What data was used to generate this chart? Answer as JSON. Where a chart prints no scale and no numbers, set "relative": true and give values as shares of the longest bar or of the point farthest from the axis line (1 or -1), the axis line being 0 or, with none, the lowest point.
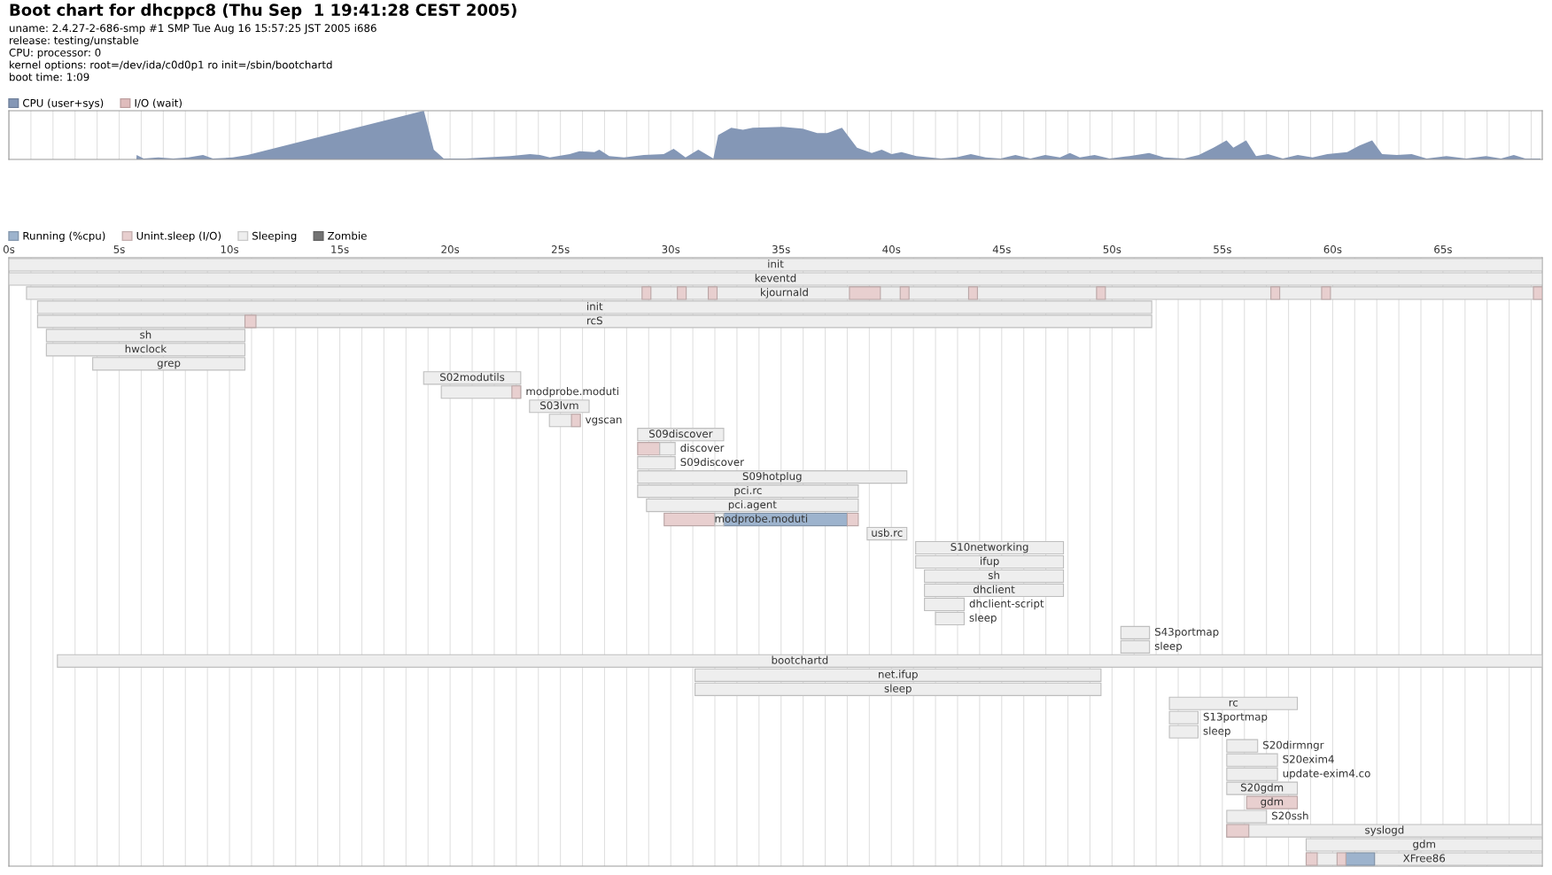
{
  "chart_data": [
    {
      "type": "area",
      "title": "Boot chart for dhcppc8 (Thu Sep  1 19:41:28 CEST 2005)",
      "annotations": [
        "uname: 2.4.27-2-686-smp #1 SMP Tue Aug 16 15:57:25 JST 2005 i686",
        "release: testing/unstable",
        "CPU: processor: 0",
        "kernel options: root=/dev/ida/c0d0p1 ro init=/sbin/bootchartd",
        "boot time: 1:09"
      ],
      "relative": true,
      "xlim": [
        0,
        69.5
      ],
      "grid": "x",
      "legend": "top left",
      "tick_labels": false,
      "xticks": [
        {
          "value": 0,
          "label": null
        },
        {
          "value": 1,
          "label": null
        },
        {
          "value": 2,
          "label": null
        },
        {
          "value": 3,
          "label": null
        },
        {
          "value": 4,
          "label": null
        },
        {
          "value": 5,
          "label": null
        },
        {
          "value": 6,
          "label": null
        },
        {
          "value": 7,
          "label": null
        },
        {
          "value": 8,
          "label": null
        },
        {
          "value": 9,
          "label": null
        },
        {
          "value": 10,
          "label": null
        },
        {
          "value": 11,
          "label": null
        },
        {
          "value": 12,
          "label": null
        },
        {
          "value": 13,
          "label": null
        },
        {
          "value": 14,
          "label": null
        },
        {
          "value": 15,
          "label": null
        },
        {
          "value": 16,
          "label": null
        },
        {
          "value": 17,
          "label": null
        },
        {
          "value": 18,
          "label": null
        },
        {
          "value": 19,
          "label": null
        },
        {
          "value": 20,
          "label": null
        },
        {
          "value": 21,
          "label": null
        },
        {
          "value": 22,
          "label": null
        },
        {
          "value": 23,
          "label": null
        },
        {
          "value": 24,
          "label": null
        },
        {
          "value": 25,
          "label": null
        },
        {
          "value": 26,
          "label": null
        },
        {
          "value": 27,
          "label": null
        },
        {
          "value": 28,
          "label": null
        },
        {
          "value": 29,
          "label": null
        },
        {
          "value": 30,
          "label": null
        },
        {
          "value": 31,
          "label": null
        },
        {
          "value": 32,
          "label": null
        },
        {
          "value": 33,
          "label": null
        },
        {
          "value": 34,
          "label": null
        },
        {
          "value": 35,
          "label": null
        },
        {
          "value": 36,
          "label": null
        },
        {
          "value": 37,
          "label": null
        },
        {
          "value": 38,
          "label": null
        },
        {
          "value": 39,
          "label": null
        },
        {
          "value": 40,
          "label": null
        },
        {
          "value": 41,
          "label": null
        },
        {
          "value": 42,
          "label": null
        },
        {
          "value": 43,
          "label": null
        },
        {
          "value": 44,
          "label": null
        },
        {
          "value": 45,
          "label": null
        },
        {
          "value": 46,
          "label": null
        },
        {
          "value": 47,
          "label": null
        },
        {
          "value": 48,
          "label": null
        },
        {
          "value": 49,
          "label": null
        },
        {
          "value": 50,
          "label": null
        },
        {
          "value": 51,
          "label": null
        },
        {
          "value": 52,
          "label": null
        },
        {
          "value": 53,
          "label": null
        },
        {
          "value": 54,
          "label": null
        },
        {
          "value": 55,
          "label": null
        },
        {
          "value": 56,
          "label": null
        },
        {
          "value": 57,
          "label": null
        },
        {
          "value": 58,
          "label": null
        },
        {
          "value": 59,
          "label": null
        },
        {
          "value": 60,
          "label": null
        },
        {
          "value": 61,
          "label": null
        },
        {
          "value": 62,
          "label": null
        },
        {
          "value": 63,
          "label": null
        },
        {
          "value": 64,
          "label": null
        },
        {
          "value": 65,
          "label": null
        },
        {
          "value": 66,
          "label": null
        },
        {
          "value": 67,
          "label": null
        },
        {
          "value": 68,
          "label": null
        },
        {
          "value": 69,
          "label": null
        }
      ],
      "series": [
        {
          "name": "CPU (user+sys)",
          "color": "#8497b6",
          "x": [
            0,
            5.78,
            5.79,
            6.11,
            6.78,
            7.45,
            8.13,
            8.8,
            9.25,
            10.15,
            10.82,
            18.81,
            19.26,
            19.71,
            20.7,
            21.6,
            22.72,
            23.62,
            24.07,
            24.52,
            25.42,
            25.86,
            26.54,
            26.76,
            27.21,
            27.88,
            28.78,
            29.68,
            30.13,
            30.67,
            31.25,
            31.93,
            32.15,
            32.74,
            33.27,
            33.72,
            35.07,
            35.97,
            36.64,
            37.09,
            37.76,
            38.44,
            39.11,
            39.56,
            40.01,
            40.46,
            41.13,
            42.25,
            42.93,
            43.6,
            44.27,
            44.95,
            45.62,
            46.3,
            46.97,
            47.64,
            48.09,
            48.54,
            49.21,
            49.89,
            50.79,
            51.68,
            52.36,
            53.26,
            53.93,
            54.6,
            55.19,
            55.5,
            56.08,
            56.53,
            57.07,
            57.74,
            58.42,
            59.09,
            59.76,
            60.66,
            61.2,
            61.79,
            62.24,
            62.91,
            63.58,
            64.26,
            65.16,
            66.05,
            66.95,
            67.63,
            68.21,
            68.73,
            69.42
          ],
          "values": [
            0,
            0,
            0.09,
            0.02,
            0.04,
            0.02,
            0.04,
            0.09,
            0.02,
            0.04,
            0.09,
            1,
            0.2,
            0.02,
            0.02,
            0.04,
            0.07,
            0.11,
            0.09,
            0.04,
            0.11,
            0.17,
            0.15,
            0.2,
            0.07,
            0.04,
            0.09,
            0.11,
            0.22,
            0.04,
            0.2,
            0.02,
            0.5,
            0.65,
            0.61,
            0.65,
            0.67,
            0.63,
            0.54,
            0.54,
            0.65,
            0.24,
            0.13,
            0.2,
            0.11,
            0.15,
            0.07,
            0.02,
            0.04,
            0.11,
            0.04,
            0.02,
            0.09,
            0.02,
            0.09,
            0.04,
            0.13,
            0.04,
            0.09,
            0.02,
            0.07,
            0.13,
            0.04,
            0.02,
            0.09,
            0.24,
            0.39,
            0.24,
            0.39,
            0.07,
            0.11,
            0.02,
            0.09,
            0.04,
            0.11,
            0.15,
            0.28,
            0.39,
            0.11,
            0.09,
            0.11,
            0.02,
            0.07,
            0.02,
            0.07,
            0.02,
            0.09,
            0.02,
            0.02
          ]
        },
        {
          "name": "I/O (wait)",
          "color": "#dfbcbc"
        }
      ]
    },
    {
      "type": "bar",
      "orientation": "horizontal",
      "xlim": [
        0,
        69.5
      ],
      "grid": "x",
      "legend": "top left",
      "tick_labels": "x",
      "xticks": [
        {
          "value": 0,
          "label": "0s"
        },
        {
          "value": 1,
          "label": null
        },
        {
          "value": 2,
          "label": null
        },
        {
          "value": 3,
          "label": null
        },
        {
          "value": 4,
          "label": null
        },
        {
          "value": 5,
          "label": "5s"
        },
        {
          "value": 6,
          "label": null
        },
        {
          "value": 7,
          "label": null
        },
        {
          "value": 8,
          "label": null
        },
        {
          "value": 9,
          "label": null
        },
        {
          "value": 10,
          "label": "10s"
        },
        {
          "value": 11,
          "label": null
        },
        {
          "value": 12,
          "label": null
        },
        {
          "value": 13,
          "label": null
        },
        {
          "value": 14,
          "label": null
        },
        {
          "value": 15,
          "label": "15s"
        },
        {
          "value": 16,
          "label": null
        },
        {
          "value": 17,
          "label": null
        },
        {
          "value": 18,
          "label": null
        },
        {
          "value": 19,
          "label": null
        },
        {
          "value": 20,
          "label": "20s"
        },
        {
          "value": 21,
          "label": null
        },
        {
          "value": 22,
          "label": null
        },
        {
          "value": 23,
          "label": null
        },
        {
          "value": 24,
          "label": null
        },
        {
          "value": 25,
          "label": "25s"
        },
        {
          "value": 26,
          "label": null
        },
        {
          "value": 27,
          "label": null
        },
        {
          "value": 28,
          "label": null
        },
        {
          "value": 29,
          "label": null
        },
        {
          "value": 30,
          "label": "30s"
        },
        {
          "value": 31,
          "label": null
        },
        {
          "value": 32,
          "label": null
        },
        {
          "value": 33,
          "label": null
        },
        {
          "value": 34,
          "label": null
        },
        {
          "value": 35,
          "label": "35s"
        },
        {
          "value": 36,
          "label": null
        },
        {
          "value": 37,
          "label": null
        },
        {
          "value": 38,
          "label": null
        },
        {
          "value": 39,
          "label": null
        },
        {
          "value": 40,
          "label": "40s"
        },
        {
          "value": 41,
          "label": null
        },
        {
          "value": 42,
          "label": null
        },
        {
          "value": 43,
          "label": null
        },
        {
          "value": 44,
          "label": null
        },
        {
          "value": 45,
          "label": "45s"
        },
        {
          "value": 46,
          "label": null
        },
        {
          "value": 47,
          "label": null
        },
        {
          "value": 48,
          "label": null
        },
        {
          "value": 49,
          "label": null
        },
        {
          "value": 50,
          "label": "50s"
        },
        {
          "value": 51,
          "label": null
        },
        {
          "value": 52,
          "label": null
        },
        {
          "value": 53,
          "label": null
        },
        {
          "value": 54,
          "label": null
        },
        {
          "value": 55,
          "label": "55s"
        },
        {
          "value": 56,
          "label": null
        },
        {
          "value": 57,
          "label": null
        },
        {
          "value": 58,
          "label": null
        },
        {
          "value": 59,
          "label": null
        },
        {
          "value": 60,
          "label": "60s"
        },
        {
          "value": 61,
          "label": null
        },
        {
          "value": 62,
          "label": null
        },
        {
          "value": 63,
          "label": null
        },
        {
          "value": 64,
          "label": null
        },
        {
          "value": 65,
          "label": "65s"
        },
        {
          "value": 66,
          "label": null
        },
        {
          "value": 67,
          "label": null
        },
        {
          "value": 68,
          "label": null
        },
        {
          "value": 69,
          "label": null
        }
      ],
      "categories": [
        "init",
        "keventd",
        "kjournald",
        "init",
        "rcS",
        "sh",
        "hwclock",
        "grep",
        "S02modutils",
        "modprobe.moduti",
        "S03lvm",
        "vgscan",
        "S09discover",
        "discover",
        "S09discover",
        "S09hotplug",
        "pci.rc",
        "pci.agent",
        "modprobe.moduti",
        "usb.rc",
        "S10networking",
        "ifup",
        "sh",
        "dhclient",
        "dhclient-script",
        "sleep",
        "S43portmap",
        "sleep",
        "bootchartd",
        "net.ifup",
        "sleep",
        "rc",
        "S13portmap",
        "sleep",
        "S20dirmngr",
        "S20exim4",
        "update-exim4.co",
        "S20gdm",
        "gdm",
        "S20ssh",
        "syslogd",
        "gdm",
        "XFree86"
      ],
      "series": [
        {
          "name": "Running (%cpu)",
          "color": "#9db3cd",
          "base": [
            null,
            null,
            null,
            null,
            null,
            null,
            null,
            null,
            null,
            null,
            null,
            null,
            null,
            null,
            null,
            null,
            null,
            null,
            32.4,
            null,
            null,
            null,
            null,
            null,
            null,
            null,
            null,
            null,
            null,
            null,
            null,
            null,
            null,
            null,
            null,
            null,
            null,
            null,
            null,
            null,
            null,
            null,
            60.6
          ],
          "values": [
            null,
            null,
            null,
            null,
            null,
            null,
            null,
            null,
            null,
            null,
            null,
            null,
            null,
            null,
            null,
            null,
            null,
            null,
            5.6,
            null,
            null,
            null,
            null,
            null,
            null,
            null,
            null,
            null,
            null,
            null,
            null,
            null,
            null,
            null,
            null,
            null,
            null,
            null,
            null,
            null,
            null,
            null,
            1.3
          ]
        },
        {
          "name": "Unint.sleep (I/O)",
          "color": "#e8cfcf",
          "base": [
            null,
            null,
            28.7,
            null,
            10.7,
            null,
            null,
            null,
            null,
            22.8,
            null,
            25.5,
            null,
            28.5,
            null,
            null,
            null,
            null,
            29.7,
            null,
            null,
            null,
            null,
            null,
            null,
            null,
            null,
            null,
            null,
            null,
            null,
            null,
            null,
            null,
            null,
            null,
            null,
            null,
            56.1,
            null,
            55.2,
            null,
            58.8
          ],
          "values": [
            null,
            null,
            0.4,
            null,
            0.5,
            null,
            null,
            null,
            null,
            0.4,
            null,
            0.4,
            null,
            1.0,
            null,
            null,
            null,
            null,
            2.3,
            null,
            null,
            null,
            null,
            null,
            null,
            null,
            null,
            null,
            null,
            null,
            null,
            null,
            null,
            null,
            null,
            null,
            null,
            null,
            2.3,
            null,
            1.0,
            null,
            0.5
          ]
        },
        {
          "name": "Sleeping",
          "color": "#eeeeee",
          "base": [
            0,
            0,
            0.8,
            1.3,
            1.3,
            1.7,
            1.7,
            3.8,
            18.8,
            19.6,
            23.6,
            24.5,
            28.5,
            29.5,
            28.5,
            28.5,
            28.5,
            28.9,
            32.0,
            38.9,
            41.1,
            41.1,
            41.5,
            41.5,
            41.5,
            42.0,
            50.4,
            50.4,
            2.2,
            31.1,
            31.1,
            52.6,
            52.6,
            52.6,
            55.2,
            55.2,
            55.2,
            55.2,
            null,
            55.2,
            55.2,
            58.8,
            58.8
          ],
          "values": [
            69.5,
            69.5,
            68.7,
            50.5,
            50.5,
            9.0,
            9.0,
            6.9,
            4.4,
            3.6,
            2.7,
            1.4,
            3.9,
            0.7,
            1.7,
            12.2,
            10.0,
            9.6,
            0.4,
            1.8,
            6.7,
            6.7,
            6.3,
            6.3,
            1.8,
            1.3,
            1.3,
            1.3,
            67.3,
            18.4,
            18.4,
            5.8,
            1.3,
            1.3,
            1.4,
            2.3,
            2.3,
            3.2,
            null,
            1.8,
            14.3,
            10.7,
            10.7
          ]
        },
        {
          "name": "Zombie",
          "color": "#737373",
          "values": [
            null,
            null,
            null,
            null,
            null,
            null,
            null,
            null,
            null,
            null,
            null,
            null,
            null,
            null,
            null,
            null,
            null,
            null,
            null,
            null,
            null,
            null,
            null,
            null,
            null,
            null,
            null,
            null,
            null,
            null,
            null,
            null,
            null,
            null,
            null,
            null,
            null,
            null,
            null,
            null,
            null,
            null,
            null
          ]
        },
        {
          "color": "#e8cfcf",
          "base": [
            null,
            null,
            30.3,
            null,
            null,
            null,
            null,
            null,
            null,
            null,
            null,
            null,
            null,
            null,
            null,
            null,
            null,
            null,
            38.0,
            null,
            null,
            null,
            null,
            null,
            null,
            null,
            null,
            null,
            null,
            null,
            null,
            null,
            null,
            null,
            null,
            null,
            null,
            null,
            null,
            null,
            null,
            null,
            60.2
          ],
          "values": [
            null,
            null,
            0.4,
            null,
            null,
            null,
            null,
            null,
            null,
            null,
            null,
            null,
            null,
            null,
            null,
            null,
            null,
            null,
            0.5,
            null,
            null,
            null,
            null,
            null,
            null,
            null,
            null,
            null,
            null,
            null,
            null,
            null,
            null,
            null,
            null,
            null,
            null,
            null,
            null,
            null,
            null,
            null,
            0.4
          ]
        },
        {
          "color": "#e8cfcf",
          "base": [
            null,
            null,
            31.7,
            null,
            null,
            null,
            null,
            null,
            null,
            null,
            null,
            null,
            null,
            null,
            null,
            null,
            null,
            null,
            null,
            null,
            null,
            null,
            null,
            null,
            null,
            null,
            null,
            null,
            null,
            null,
            null,
            null,
            null,
            null,
            null,
            null,
            null,
            null,
            null,
            null,
            null,
            null,
            null
          ],
          "values": [
            null,
            null,
            0.4,
            null,
            null,
            null,
            null,
            null,
            null,
            null,
            null,
            null,
            null,
            null,
            null,
            null,
            null,
            null,
            null,
            null,
            null,
            null,
            null,
            null,
            null,
            null,
            null,
            null,
            null,
            null,
            null,
            null,
            null,
            null,
            null,
            null,
            null,
            null,
            null,
            null,
            null,
            null,
            null
          ]
        },
        {
          "color": "#e8cfcf",
          "base": [
            null,
            null,
            38.1,
            null,
            null,
            null,
            null,
            null,
            null,
            null,
            null,
            null,
            null,
            null,
            null,
            null,
            null,
            null,
            null,
            null,
            null,
            null,
            null,
            null,
            null,
            null,
            null,
            null,
            null,
            null,
            null,
            null,
            null,
            null,
            null,
            null,
            null,
            null,
            null,
            null,
            null,
            null,
            null
          ],
          "values": [
            null,
            null,
            1.4,
            null,
            null,
            null,
            null,
            null,
            null,
            null,
            null,
            null,
            null,
            null,
            null,
            null,
            null,
            null,
            null,
            null,
            null,
            null,
            null,
            null,
            null,
            null,
            null,
            null,
            null,
            null,
            null,
            null,
            null,
            null,
            null,
            null,
            null,
            null,
            null,
            null,
            null,
            null,
            null
          ]
        },
        {
          "color": "#e8cfcf",
          "base": [
            null,
            null,
            40.4,
            null,
            null,
            null,
            null,
            null,
            null,
            null,
            null,
            null,
            null,
            null,
            null,
            null,
            null,
            null,
            null,
            null,
            null,
            null,
            null,
            null,
            null,
            null,
            null,
            null,
            null,
            null,
            null,
            null,
            null,
            null,
            null,
            null,
            null,
            null,
            null,
            null,
            null,
            null,
            null
          ],
          "values": [
            null,
            null,
            0.4,
            null,
            null,
            null,
            null,
            null,
            null,
            null,
            null,
            null,
            null,
            null,
            null,
            null,
            null,
            null,
            null,
            null,
            null,
            null,
            null,
            null,
            null,
            null,
            null,
            null,
            null,
            null,
            null,
            null,
            null,
            null,
            null,
            null,
            null,
            null,
            null,
            null,
            null,
            null,
            null
          ]
        },
        {
          "color": "#e8cfcf",
          "base": [
            null,
            null,
            43.5,
            null,
            null,
            null,
            null,
            null,
            null,
            null,
            null,
            null,
            null,
            null,
            null,
            null,
            null,
            null,
            null,
            null,
            null,
            null,
            null,
            null,
            null,
            null,
            null,
            null,
            null,
            null,
            null,
            null,
            null,
            null,
            null,
            null,
            null,
            null,
            null,
            null,
            null,
            null,
            null
          ],
          "values": [
            null,
            null,
            0.4,
            null,
            null,
            null,
            null,
            null,
            null,
            null,
            null,
            null,
            null,
            null,
            null,
            null,
            null,
            null,
            null,
            null,
            null,
            null,
            null,
            null,
            null,
            null,
            null,
            null,
            null,
            null,
            null,
            null,
            null,
            null,
            null,
            null,
            null,
            null,
            null,
            null,
            null,
            null,
            null
          ]
        },
        {
          "color": "#e8cfcf",
          "base": [
            null,
            null,
            49.3,
            null,
            null,
            null,
            null,
            null,
            null,
            null,
            null,
            null,
            null,
            null,
            null,
            null,
            null,
            null,
            null,
            null,
            null,
            null,
            null,
            null,
            null,
            null,
            null,
            null,
            null,
            null,
            null,
            null,
            null,
            null,
            null,
            null,
            null,
            null,
            null,
            null,
            null,
            null,
            null
          ],
          "values": [
            null,
            null,
            0.4,
            null,
            null,
            null,
            null,
            null,
            null,
            null,
            null,
            null,
            null,
            null,
            null,
            null,
            null,
            null,
            null,
            null,
            null,
            null,
            null,
            null,
            null,
            null,
            null,
            null,
            null,
            null,
            null,
            null,
            null,
            null,
            null,
            null,
            null,
            null,
            null,
            null,
            null,
            null,
            null
          ]
        },
        {
          "color": "#e8cfcf",
          "base": [
            null,
            null,
            57.2,
            null,
            null,
            null,
            null,
            null,
            null,
            null,
            null,
            null,
            null,
            null,
            null,
            null,
            null,
            null,
            null,
            null,
            null,
            null,
            null,
            null,
            null,
            null,
            null,
            null,
            null,
            null,
            null,
            null,
            null,
            null,
            null,
            null,
            null,
            null,
            null,
            null,
            null,
            null,
            null
          ],
          "values": [
            null,
            null,
            0.4,
            null,
            null,
            null,
            null,
            null,
            null,
            null,
            null,
            null,
            null,
            null,
            null,
            null,
            null,
            null,
            null,
            null,
            null,
            null,
            null,
            null,
            null,
            null,
            null,
            null,
            null,
            null,
            null,
            null,
            null,
            null,
            null,
            null,
            null,
            null,
            null,
            null,
            null,
            null,
            null
          ]
        },
        {
          "color": "#e8cfcf",
          "base": [
            null,
            null,
            59.5,
            null,
            null,
            null,
            null,
            null,
            null,
            null,
            null,
            null,
            null,
            null,
            null,
            null,
            null,
            null,
            null,
            null,
            null,
            null,
            null,
            null,
            null,
            null,
            null,
            null,
            null,
            null,
            null,
            null,
            null,
            null,
            null,
            null,
            null,
            null,
            null,
            null,
            null,
            null,
            null
          ],
          "values": [
            null,
            null,
            0.4,
            null,
            null,
            null,
            null,
            null,
            null,
            null,
            null,
            null,
            null,
            null,
            null,
            null,
            null,
            null,
            null,
            null,
            null,
            null,
            null,
            null,
            null,
            null,
            null,
            null,
            null,
            null,
            null,
            null,
            null,
            null,
            null,
            null,
            null,
            null,
            null,
            null,
            null,
            null,
            null
          ]
        },
        {
          "color": "#e8cfcf",
          "base": [
            null,
            null,
            69.1,
            null,
            null,
            null,
            null,
            null,
            null,
            null,
            null,
            null,
            null,
            null,
            null,
            null,
            null,
            null,
            null,
            null,
            null,
            null,
            null,
            null,
            null,
            null,
            null,
            null,
            null,
            null,
            null,
            null,
            null,
            null,
            null,
            null,
            null,
            null,
            null,
            null,
            null,
            null,
            null
          ],
          "values": [
            null,
            null,
            0.4,
            null,
            null,
            null,
            null,
            null,
            null,
            null,
            null,
            null,
            null,
            null,
            null,
            null,
            null,
            null,
            null,
            null,
            null,
            null,
            null,
            null,
            null,
            null,
            null,
            null,
            null,
            null,
            null,
            null,
            null,
            null,
            null,
            null,
            null,
            null,
            null,
            null,
            null,
            null,
            null
          ]
        }
      ]
    }
  ]
}
